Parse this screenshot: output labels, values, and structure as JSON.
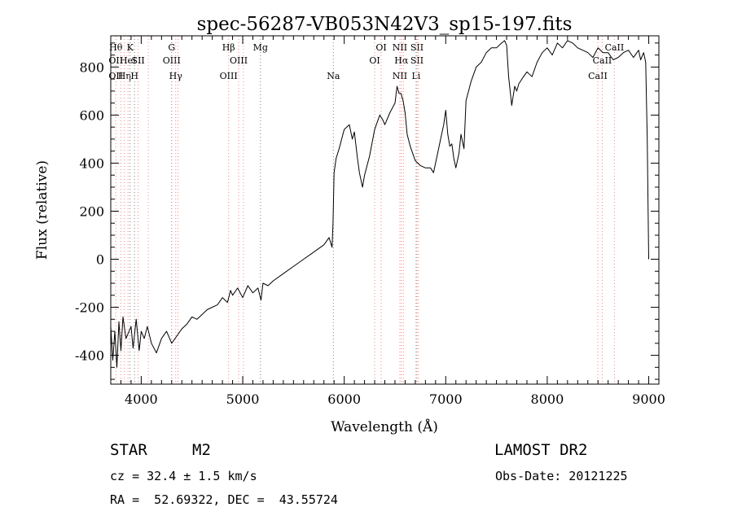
{
  "chart_data": {
    "type": "line",
    "title": "spec-56287-VB053N42V3_sp15-197.fits",
    "xlabel": "Wavelength (Å)",
    "ylabel": "Flux (relative)",
    "xlim": [
      3700,
      9100
    ],
    "ylim": [
      -520,
      930
    ],
    "x_ticks": [
      4000,
      5000,
      6000,
      7000,
      8000,
      9000
    ],
    "y_ticks": [
      -400,
      -200,
      0,
      200,
      400,
      600,
      800
    ],
    "grid": false,
    "series": [
      {
        "x": [
          3700,
          3720,
          3740,
          3760,
          3780,
          3800,
          3820,
          3850,
          3880,
          3900,
          3920,
          3950,
          3980,
          4000,
          4030,
          4060,
          4100,
          4150,
          4200,
          4250,
          4300,
          4350,
          4400,
          4450,
          4500,
          4550,
          4600,
          4650,
          4700,
          4750,
          4800,
          4850,
          4880,
          4900,
          4950,
          5000,
          5050,
          5100,
          5150,
          5180,
          5200,
          5250,
          5300,
          5400,
          5500,
          5600,
          5700,
          5800,
          5850,
          5880,
          5890,
          5900,
          5920,
          5950,
          6000,
          6050,
          6080,
          6100,
          6130,
          6150,
          6180,
          6200,
          6250,
          6300,
          6350,
          6380,
          6400,
          6450,
          6500,
          6520,
          6540,
          6560,
          6580,
          6600,
          6620,
          6650,
          6700,
          6750,
          6800,
          6850,
          6880,
          6900,
          6920,
          6950,
          6980,
          7000,
          7020,
          7040,
          7060,
          7080,
          7100,
          7130,
          7150,
          7180,
          7200,
          7250,
          7300,
          7350,
          7400,
          7450,
          7500,
          7550,
          7580,
          7600,
          7620,
          7650,
          7680,
          7700,
          7720,
          7750,
          7800,
          7850,
          7900,
          7950,
          8000,
          8050,
          8100,
          8150,
          8200,
          8250,
          8300,
          8350,
          8400,
          8450,
          8500,
          8550,
          8600,
          8650,
          8700,
          8750,
          8800,
          8850,
          8900,
          8920,
          8950,
          8970,
          8985,
          9000
        ],
        "y": [
          -280,
          -420,
          -300,
          -450,
          -260,
          -380,
          -240,
          -330,
          -300,
          -280,
          -370,
          -250,
          -380,
          -300,
          -330,
          -280,
          -350,
          -390,
          -330,
          -300,
          -350,
          -320,
          -290,
          -270,
          -240,
          -250,
          -230,
          -210,
          -200,
          -190,
          -160,
          -180,
          -130,
          -150,
          -120,
          -160,
          -110,
          -140,
          -120,
          -170,
          -100,
          -110,
          -90,
          -60,
          -30,
          0,
          30,
          60,
          90,
          50,
          150,
          360,
          420,
          460,
          540,
          560,
          500,
          530,
          420,
          360,
          300,
          350,
          430,
          540,
          600,
          580,
          560,
          610,
          650,
          720,
          690,
          690,
          660,
          610,
          520,
          470,
          410,
          390,
          380,
          380,
          360,
          400,
          440,
          500,
          560,
          620,
          520,
          470,
          480,
          420,
          380,
          440,
          520,
          460,
          660,
          740,
          800,
          820,
          860,
          880,
          880,
          900,
          910,
          890,
          760,
          640,
          720,
          700,
          730,
          750,
          780,
          760,
          820,
          860,
          880,
          850,
          900,
          880,
          910,
          900,
          880,
          870,
          860,
          840,
          880,
          860,
          860,
          830,
          840,
          860,
          870,
          840,
          870,
          830,
          860,
          820,
          500,
          0
        ]
      }
    ],
    "lines": [
      {
        "x": 3750,
        "top_label": "Hθ",
        "mid_label": "OII",
        "bot_label": "OII",
        "color": "#ff8080"
      },
      {
        "x": 3800,
        "color": "#ff8080"
      },
      {
        "x": 3835,
        "bot_label": "Hη",
        "color": "#ff8080"
      },
      {
        "x": 3870,
        "mid_label": "HeI",
        "color": "#ff8080"
      },
      {
        "x": 3890,
        "top_label": "K",
        "color": "#808080"
      },
      {
        "x": 3934,
        "bot_label": "H",
        "color": "#808080"
      },
      {
        "x": 3970,
        "mid_label": "SII",
        "color": "#ff8080"
      },
      {
        "x": 4070,
        "color": "#ff8080"
      },
      {
        "x": 4300,
        "top_label": "G",
        "mid_label": "OIII",
        "color": "#808080"
      },
      {
        "x": 4340,
        "bot_label": "Hγ",
        "color": "#ff8080"
      },
      {
        "x": 4363,
        "color": "#ff8080"
      },
      {
        "x": 4861,
        "top_label": "Hβ",
        "bot_label": "OIII",
        "color": "#ff8080"
      },
      {
        "x": 4960,
        "mid_label": "OIII",
        "color": "#ff8080"
      },
      {
        "x": 5007,
        "color": "#ff8080"
      },
      {
        "x": 5175,
        "top_label": "Mg",
        "color": "#808080"
      },
      {
        "x": 5893,
        "bot_label": "Na",
        "color": "#808080"
      },
      {
        "x": 6300,
        "mid_label": "OI",
        "color": "#ff8080"
      },
      {
        "x": 6364,
        "top_label": "OI",
        "color": "#ff8080"
      },
      {
        "x": 6548,
        "top_label": "NII",
        "bot_label": "NII",
        "color": "#ff8080"
      },
      {
        "x": 6563,
        "mid_label": "Hα",
        "color": "#ff8080"
      },
      {
        "x": 6583,
        "color": "#ff8080"
      },
      {
        "x": 6708,
        "bot_label": "Li",
        "color": "#808080"
      },
      {
        "x": 6717,
        "top_label": "SII",
        "mid_label": "SII",
        "color": "#ff8080"
      },
      {
        "x": 6731,
        "color": "#ff8080"
      },
      {
        "x": 8498,
        "bot_label": "CaII",
        "color": "#ff8080"
      },
      {
        "x": 8542,
        "mid_label": "CaII",
        "color": "#ff8080"
      },
      {
        "x": 8662,
        "top_label": "CaII",
        "color": "#ff8080"
      }
    ],
    "spectrum_color": "#000000"
  },
  "info": {
    "object_class": "STAR",
    "subclass": "M2",
    "survey": "LAMOST DR2",
    "redshift": "cz = 32.4 ± 1.5 km/s",
    "obs_date": "Obs-Date: 20121225",
    "coords": "RA =  52.69322, DEC =  43.55724"
  }
}
